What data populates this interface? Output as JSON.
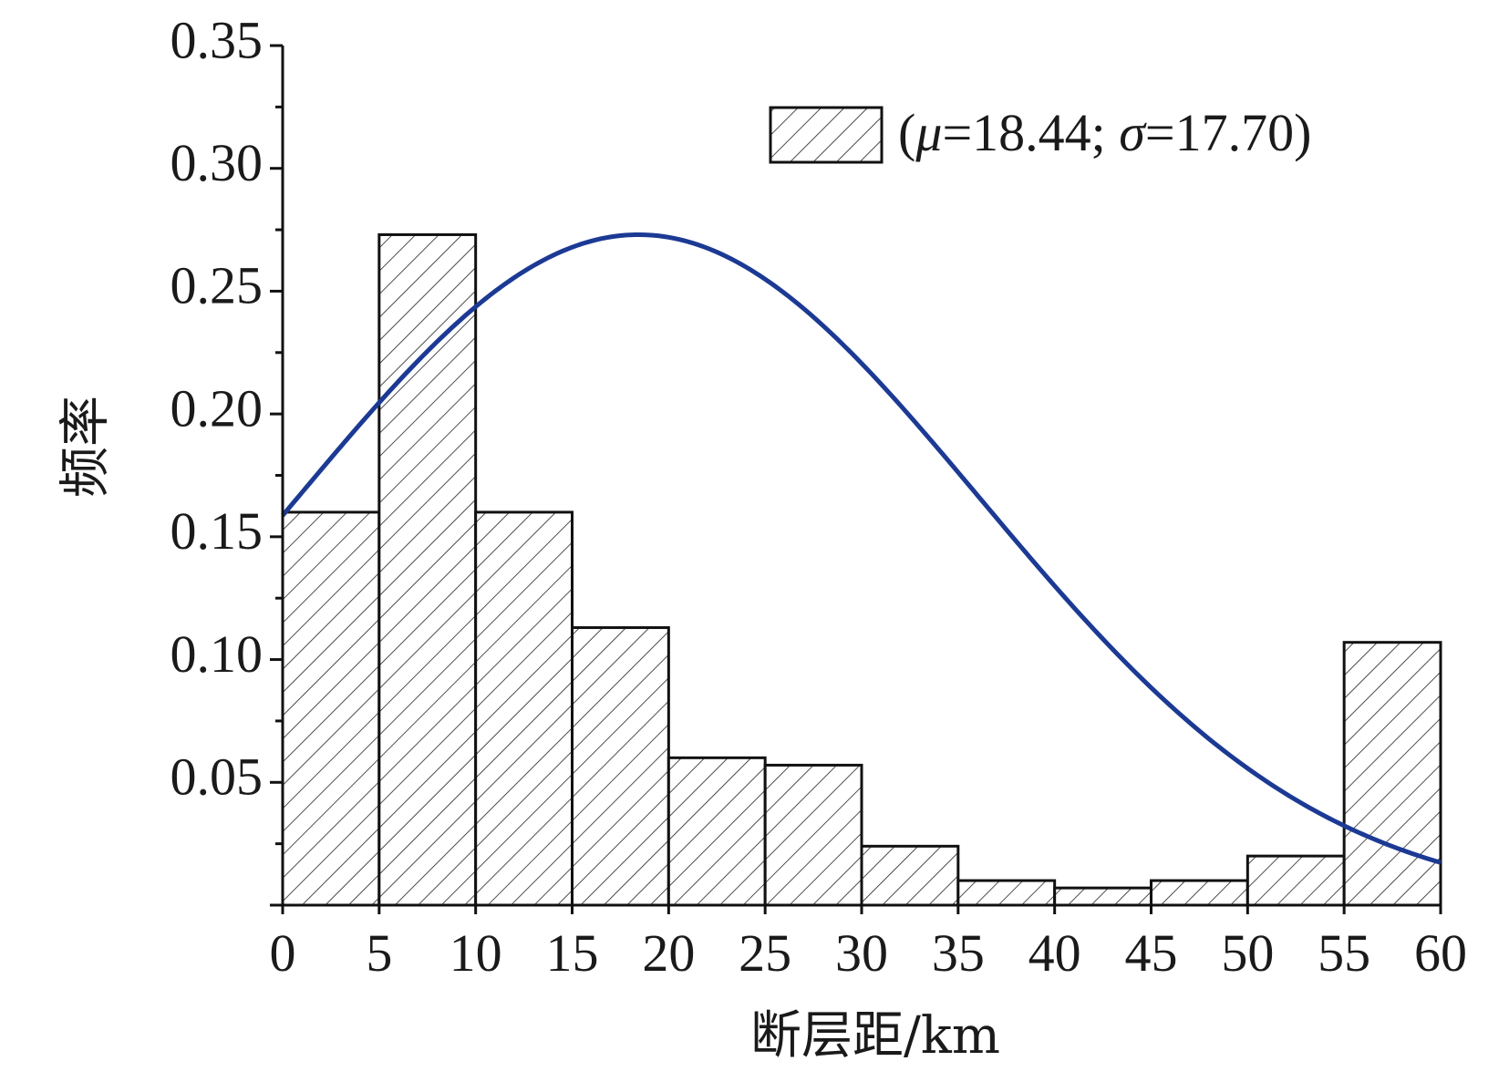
{
  "chart_data": {
    "type": "bar",
    "ylabel": "频率",
    "xlabel": "断层距/km",
    "legend": {
      "label_parts": [
        "(",
        "μ",
        "=18.44; ",
        "σ",
        "=17.70)"
      ],
      "placement": "top-right"
    },
    "bin_edges": [
      0,
      5,
      10,
      15,
      20,
      25,
      30,
      35,
      40,
      45,
      50,
      55,
      60
    ],
    "values": [
      0.16,
      0.273,
      0.16,
      0.113,
      0.06,
      0.057,
      0.024,
      0.01,
      0.007,
      0.01,
      0.02,
      0.107
    ],
    "normal_curve": {
      "mean": 18.44,
      "sd": 17.7,
      "peak": 0.273,
      "color": "#1c3a94"
    },
    "xlim": [
      0,
      60
    ],
    "ylim": [
      0,
      0.35
    ],
    "x_ticks": [
      "0",
      "5",
      "10",
      "15",
      "20",
      "25",
      "30",
      "35",
      "40",
      "45",
      "50",
      "55",
      "60"
    ],
    "y_ticks": [
      "0.05",
      "0.10",
      "0.15",
      "0.20",
      "0.25",
      "0.30",
      "0.35"
    ],
    "grid": false,
    "fill_pattern": "diagonal-hatch"
  }
}
